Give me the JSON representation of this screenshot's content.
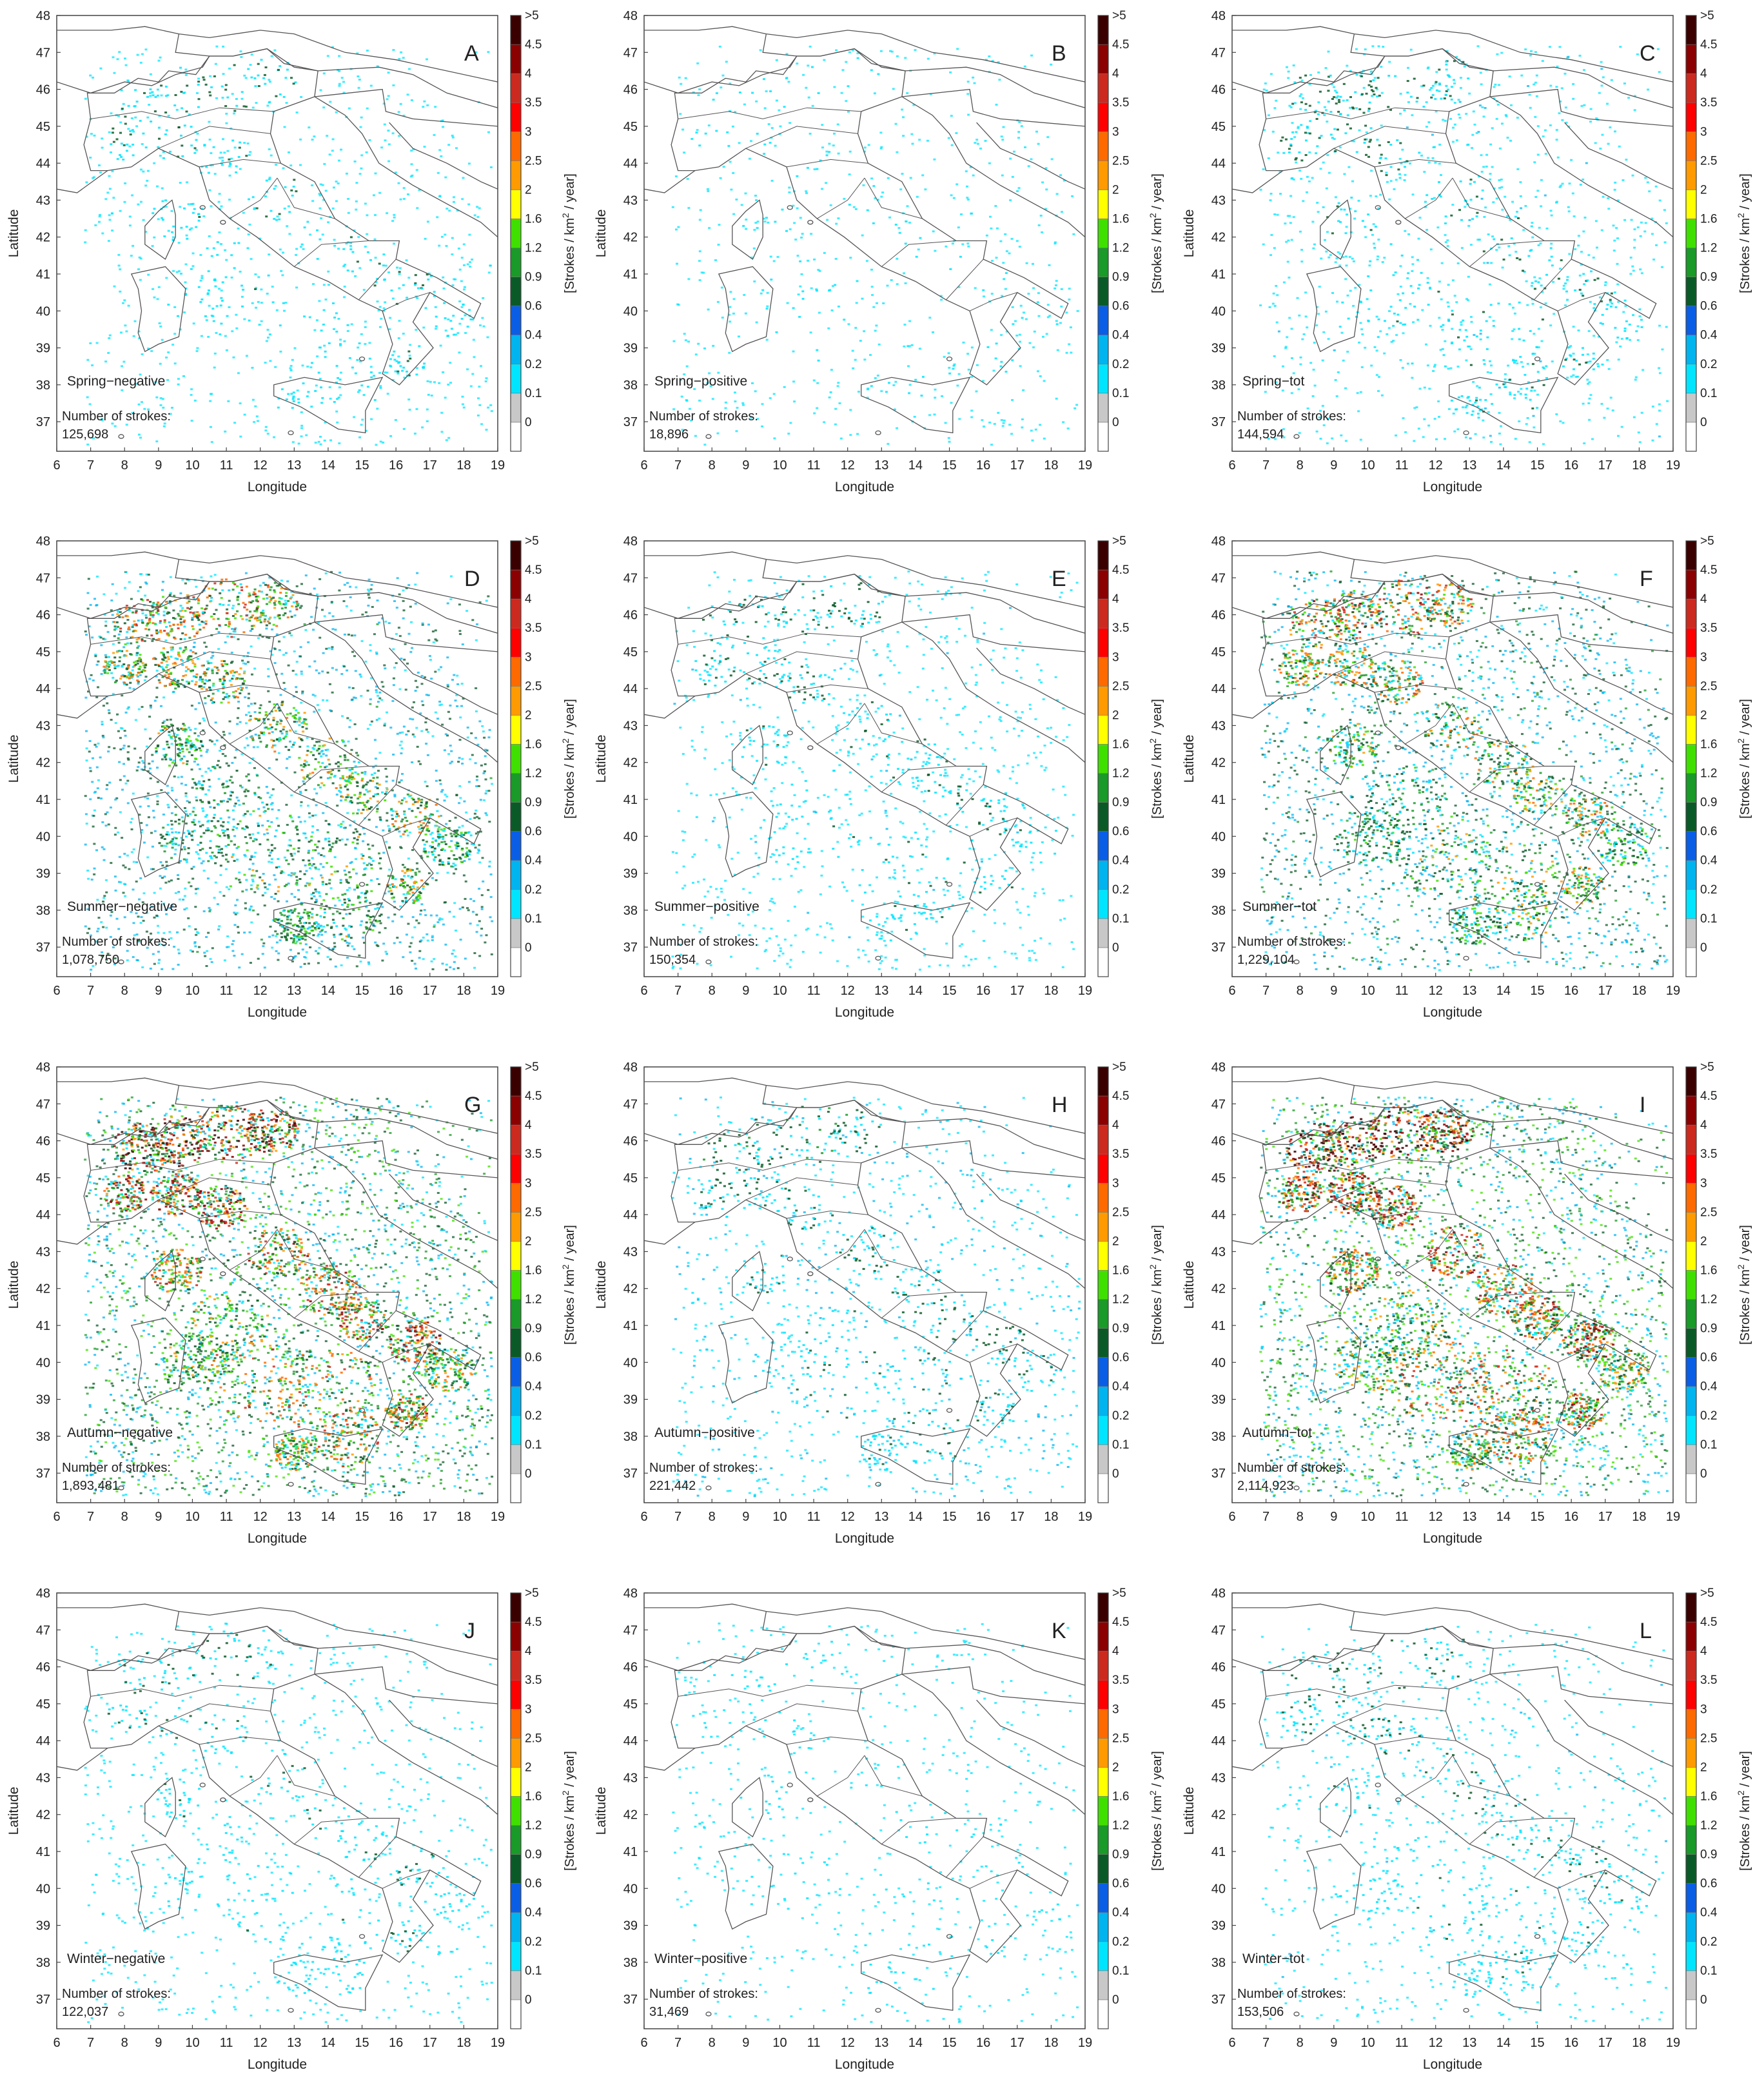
{
  "axes": {
    "xlabel": "Longitude",
    "ylabel": "Latitude",
    "x_ticks": [
      "6",
      "7",
      "8",
      "9",
      "10",
      "11",
      "12",
      "13",
      "14",
      "15",
      "16",
      "17",
      "18",
      "19"
    ],
    "y_ticks": [
      "37",
      "38",
      "39",
      "40",
      "41",
      "42",
      "43",
      "44",
      "45",
      "46",
      "47",
      "48"
    ]
  },
  "colorbar": {
    "label": "[Strokes / km",
    "label_sup": "2",
    "label_end": " / year]",
    "tick_labels": [
      ">5",
      "4.5",
      "4",
      "3.5",
      "3",
      "2.5",
      "2",
      "1.6",
      "1.2",
      "0.9",
      "0.6",
      "0.4",
      "0.2",
      "0.1",
      "0"
    ],
    "bins": [
      {
        "lo": 0,
        "hi": 0.1,
        "color": "#ffffff"
      },
      {
        "lo": 0.1,
        "hi": 0.2,
        "color": "#c8c8c8"
      },
      {
        "lo": 0.2,
        "hi": 0.4,
        "color": "#00e5ff"
      },
      {
        "lo": 0.4,
        "hi": 0.6,
        "color": "#00b4f0"
      },
      {
        "lo": 0.6,
        "hi": 0.9,
        "color": "#0a5ee6"
      },
      {
        "lo": 0.9,
        "hi": 1.2,
        "color": "#0a5a28"
      },
      {
        "lo": 1.2,
        "hi": 1.6,
        "color": "#1a9a28"
      },
      {
        "lo": 1.6,
        "hi": 2,
        "color": "#3fe000"
      },
      {
        "lo": 2,
        "hi": 2.5,
        "color": "#ffff00"
      },
      {
        "lo": 2.5,
        "hi": 3,
        "color": "#ff9b00"
      },
      {
        "lo": 3,
        "hi": 3.5,
        "color": "#ff6a00"
      },
      {
        "lo": 3.5,
        "hi": 4,
        "color": "#ff0000"
      },
      {
        "lo": 4,
        "hi": 4.5,
        "color": "#cc2a1e"
      },
      {
        "lo": 4.5,
        "hi": 5,
        "color": "#8b0000"
      },
      {
        "lo": 5,
        "hi": null,
        "color": "#3a0000"
      }
    ]
  },
  "count_label": "Number of strokes:",
  "panels": [
    {
      "letter": "A",
      "title": "Spring−negative",
      "strokes": "125,698",
      "intensity": 0.12
    },
    {
      "letter": "B",
      "title": "Spring−positive",
      "strokes": "18,896",
      "intensity": 0.03
    },
    {
      "letter": "C",
      "title": "Spring−tot",
      "strokes": "144,594",
      "intensity": 0.14
    },
    {
      "letter": "D",
      "title": "Summer−negative",
      "strokes": "1,078,750",
      "intensity": 0.55
    },
    {
      "letter": "E",
      "title": "Summer−positive",
      "strokes": "150,354",
      "intensity": 0.14
    },
    {
      "letter": "F",
      "title": "Summer−tot",
      "strokes": "1,229,104",
      "intensity": 0.6
    },
    {
      "letter": "G",
      "title": "Autumn−negative",
      "strokes": "1,893,481",
      "intensity": 0.85
    },
    {
      "letter": "H",
      "title": "Autumn−positive",
      "strokes": "221,442",
      "intensity": 0.18
    },
    {
      "letter": "I",
      "title": "Autumn−tot",
      "strokes": "2,114,923",
      "intensity": 0.9
    },
    {
      "letter": "J",
      "title": "Winter−negative",
      "strokes": "122,037",
      "intensity": 0.12
    },
    {
      "letter": "K",
      "title": "Winter−positive",
      "strokes": "31,469",
      "intensity": 0.04
    },
    {
      "letter": "L",
      "title": "Winter−tot",
      "strokes": "153,506",
      "intensity": 0.14
    }
  ]
}
